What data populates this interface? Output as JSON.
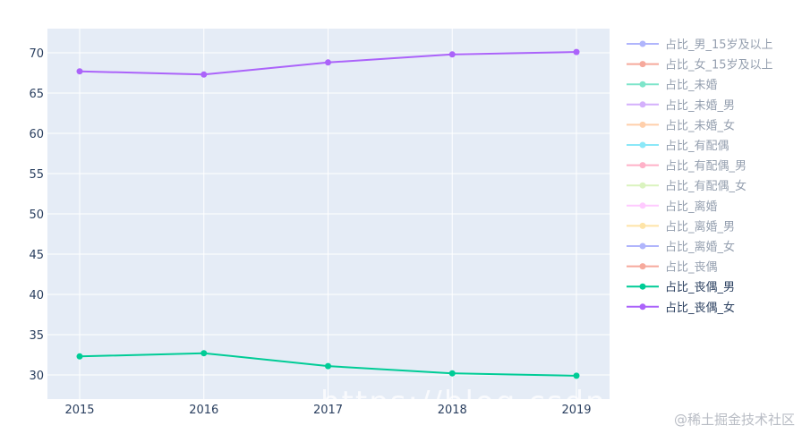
{
  "chart_data": {
    "type": "line",
    "x": [
      "2015",
      "2016",
      "2017",
      "2018",
      "2019"
    ],
    "ylim": [
      27,
      73
    ],
    "yticks": [
      30,
      35,
      40,
      45,
      50,
      55,
      60,
      65,
      70
    ],
    "grid": true,
    "legend_position": "right",
    "legend": [
      {
        "name": "占比_男_15岁及以上",
        "color": "#636efa",
        "active": false
      },
      {
        "name": "占比_女_15岁及以上",
        "color": "#EF553B",
        "active": false
      },
      {
        "name": "占比_未婚",
        "color": "#00cc96",
        "active": false
      },
      {
        "name": "占比_未婚_男",
        "color": "#ab63fa",
        "active": false
      },
      {
        "name": "占比_未婚_女",
        "color": "#FFA15A",
        "active": false
      },
      {
        "name": "占比_有配偶",
        "color": "#19d3f3",
        "active": false
      },
      {
        "name": "占比_有配偶_男",
        "color": "#FF6692",
        "active": false
      },
      {
        "name": "占比_有配偶_女",
        "color": "#B6E880",
        "active": false
      },
      {
        "name": "占比_离婚",
        "color": "#FF97FF",
        "active": false
      },
      {
        "name": "占比_离婚_男",
        "color": "#FECB52",
        "active": false
      },
      {
        "name": "占比_离婚_女",
        "color": "#636efa",
        "active": false
      },
      {
        "name": "占比_丧偶",
        "color": "#EF553B",
        "active": false
      },
      {
        "name": "占比_丧偶_男",
        "color": "#00cc96",
        "active": true
      },
      {
        "name": "占比_丧偶_女",
        "color": "#ab63fa",
        "active": true
      }
    ],
    "series": [
      {
        "name": "占比_丧偶_男",
        "color": "#00cc96",
        "values": [
          32.3,
          32.7,
          31.1,
          30.2,
          29.9
        ]
      },
      {
        "name": "占比_丧偶_女",
        "color": "#ab63fa",
        "values": [
          67.7,
          67.3,
          68.8,
          69.8,
          70.1
        ]
      }
    ]
  },
  "watermark": "@稀土掘金技术社区",
  "watermark_url": "https://blog.csdn.net"
}
